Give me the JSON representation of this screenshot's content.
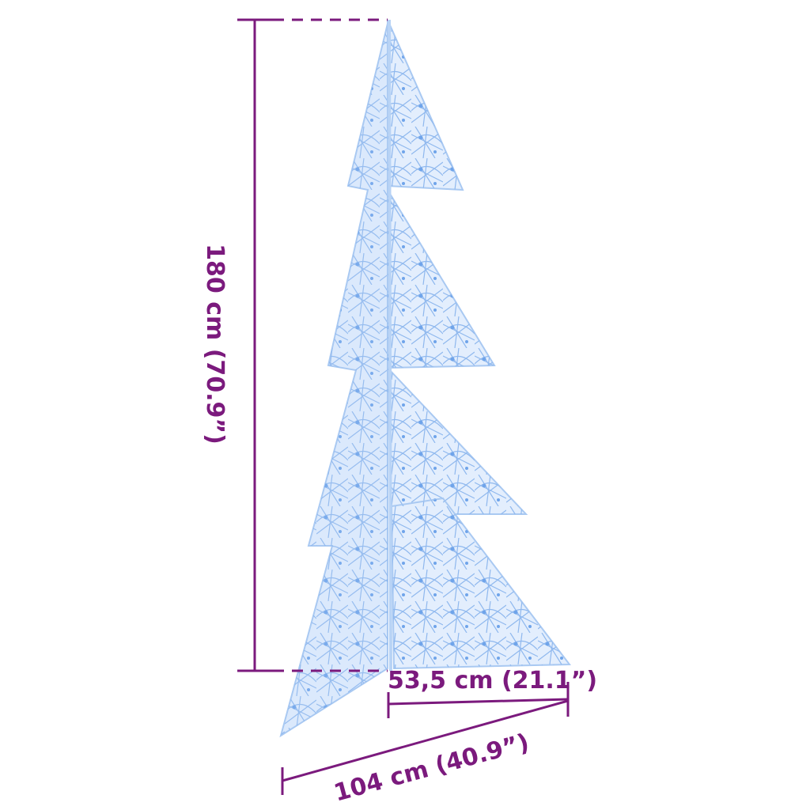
{
  "colors": {
    "dimension": "#7b1a7d",
    "tree_fill": "#cfe2fb",
    "tree_wire": "#8fb8ee"
  },
  "dimensions": {
    "height": "180 cm (70.9”)",
    "depth": "53,5 cm (21.1”)",
    "width": "104 cm (40.9”)"
  }
}
